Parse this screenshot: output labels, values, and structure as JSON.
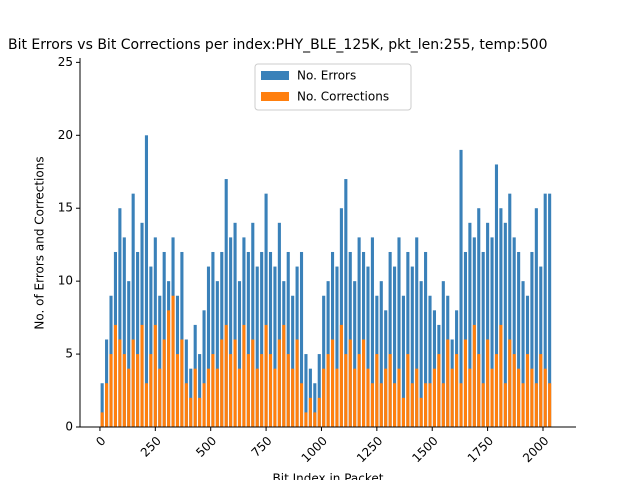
{
  "chart_data": {
    "type": "bar",
    "title": "Bit Errors vs Bit Corrections per index:PHY_BLE_125K, pkt_len:255, temp:500",
    "x_label": "Bit Index in Packet",
    "y_label": "No. of Errors and Corrections",
    "x": [
      10,
      30,
      50,
      70,
      90,
      110,
      130,
      150,
      170,
      190,
      210,
      230,
      250,
      270,
      290,
      310,
      330,
      350,
      370,
      390,
      410,
      430,
      450,
      470,
      490,
      510,
      530,
      550,
      570,
      590,
      610,
      630,
      650,
      670,
      690,
      710,
      730,
      750,
      770,
      790,
      810,
      830,
      850,
      870,
      890,
      910,
      930,
      950,
      970,
      990,
      1010,
      1030,
      1050,
      1070,
      1090,
      1110,
      1130,
      1150,
      1170,
      1190,
      1210,
      1230,
      1250,
      1270,
      1290,
      1310,
      1330,
      1350,
      1370,
      1390,
      1410,
      1430,
      1450,
      1470,
      1490,
      1510,
      1530,
      1550,
      1570,
      1590,
      1610,
      1630,
      1650,
      1670,
      1690,
      1710,
      1730,
      1750,
      1770,
      1790,
      1810,
      1830,
      1850,
      1870,
      1890,
      1910,
      1930,
      1950,
      1970,
      1990,
      2010,
      2030
    ],
    "series": [
      {
        "name": "No. Errors",
        "color": "#3a81b9",
        "values": [
          3,
          6,
          9,
          12,
          15,
          13,
          10,
          16,
          12,
          14,
          20,
          11,
          13,
          9,
          12,
          10,
          13,
          9,
          12,
          6,
          4,
          7,
          5,
          8,
          11,
          12,
          10,
          12,
          17,
          13,
          14,
          10,
          13,
          12,
          14,
          11,
          12,
          16,
          12,
          11,
          14,
          10,
          12,
          9,
          11,
          12,
          5,
          4,
          3,
          5,
          9,
          10,
          12,
          11,
          15,
          17,
          12,
          10,
          13,
          12,
          11,
          13,
          9,
          10,
          8,
          12,
          11,
          13,
          9,
          12,
          11,
          13,
          10,
          12,
          9,
          8,
          7,
          10,
          9,
          6,
          8,
          19,
          12,
          14,
          13,
          15,
          12,
          14,
          13,
          18,
          15,
          14,
          16,
          13,
          12,
          10,
          9,
          12,
          15,
          11,
          16,
          16
        ]
      },
      {
        "name": "No. Corrections",
        "color": "#ff7f0e",
        "values": [
          1,
          3,
          5,
          7,
          6,
          5,
          4,
          6,
          5,
          7,
          3,
          5,
          7,
          4,
          6,
          8,
          9,
          5,
          6,
          3,
          2,
          4,
          2,
          3,
          4,
          5,
          4,
          6,
          7,
          5,
          6,
          4,
          7,
          5,
          6,
          4,
          5,
          7,
          5,
          4,
          6,
          7,
          5,
          4,
          6,
          3,
          1,
          2,
          1,
          2,
          4,
          5,
          6,
          4,
          7,
          5,
          6,
          4,
          5,
          6,
          4,
          3,
          5,
          3,
          4,
          5,
          3,
          4,
          2,
          5,
          3,
          4,
          2,
          3,
          3,
          4,
          5,
          3,
          6,
          4,
          5,
          3,
          6,
          4,
          7,
          5,
          3,
          6,
          4,
          5,
          7,
          3,
          6,
          5,
          4,
          3,
          5,
          4,
          3,
          5,
          4,
          3
        ]
      }
    ],
    "xlim": [
      -90,
      2149
    ],
    "xticks": [
      0,
      250,
      500,
      750,
      1000,
      1250,
      1500,
      1750,
      2000
    ],
    "ylim": [
      0,
      25.3
    ],
    "yticks": [
      0,
      5,
      10,
      15,
      20,
      25
    ],
    "legend": "upper center",
    "grid": false
  }
}
